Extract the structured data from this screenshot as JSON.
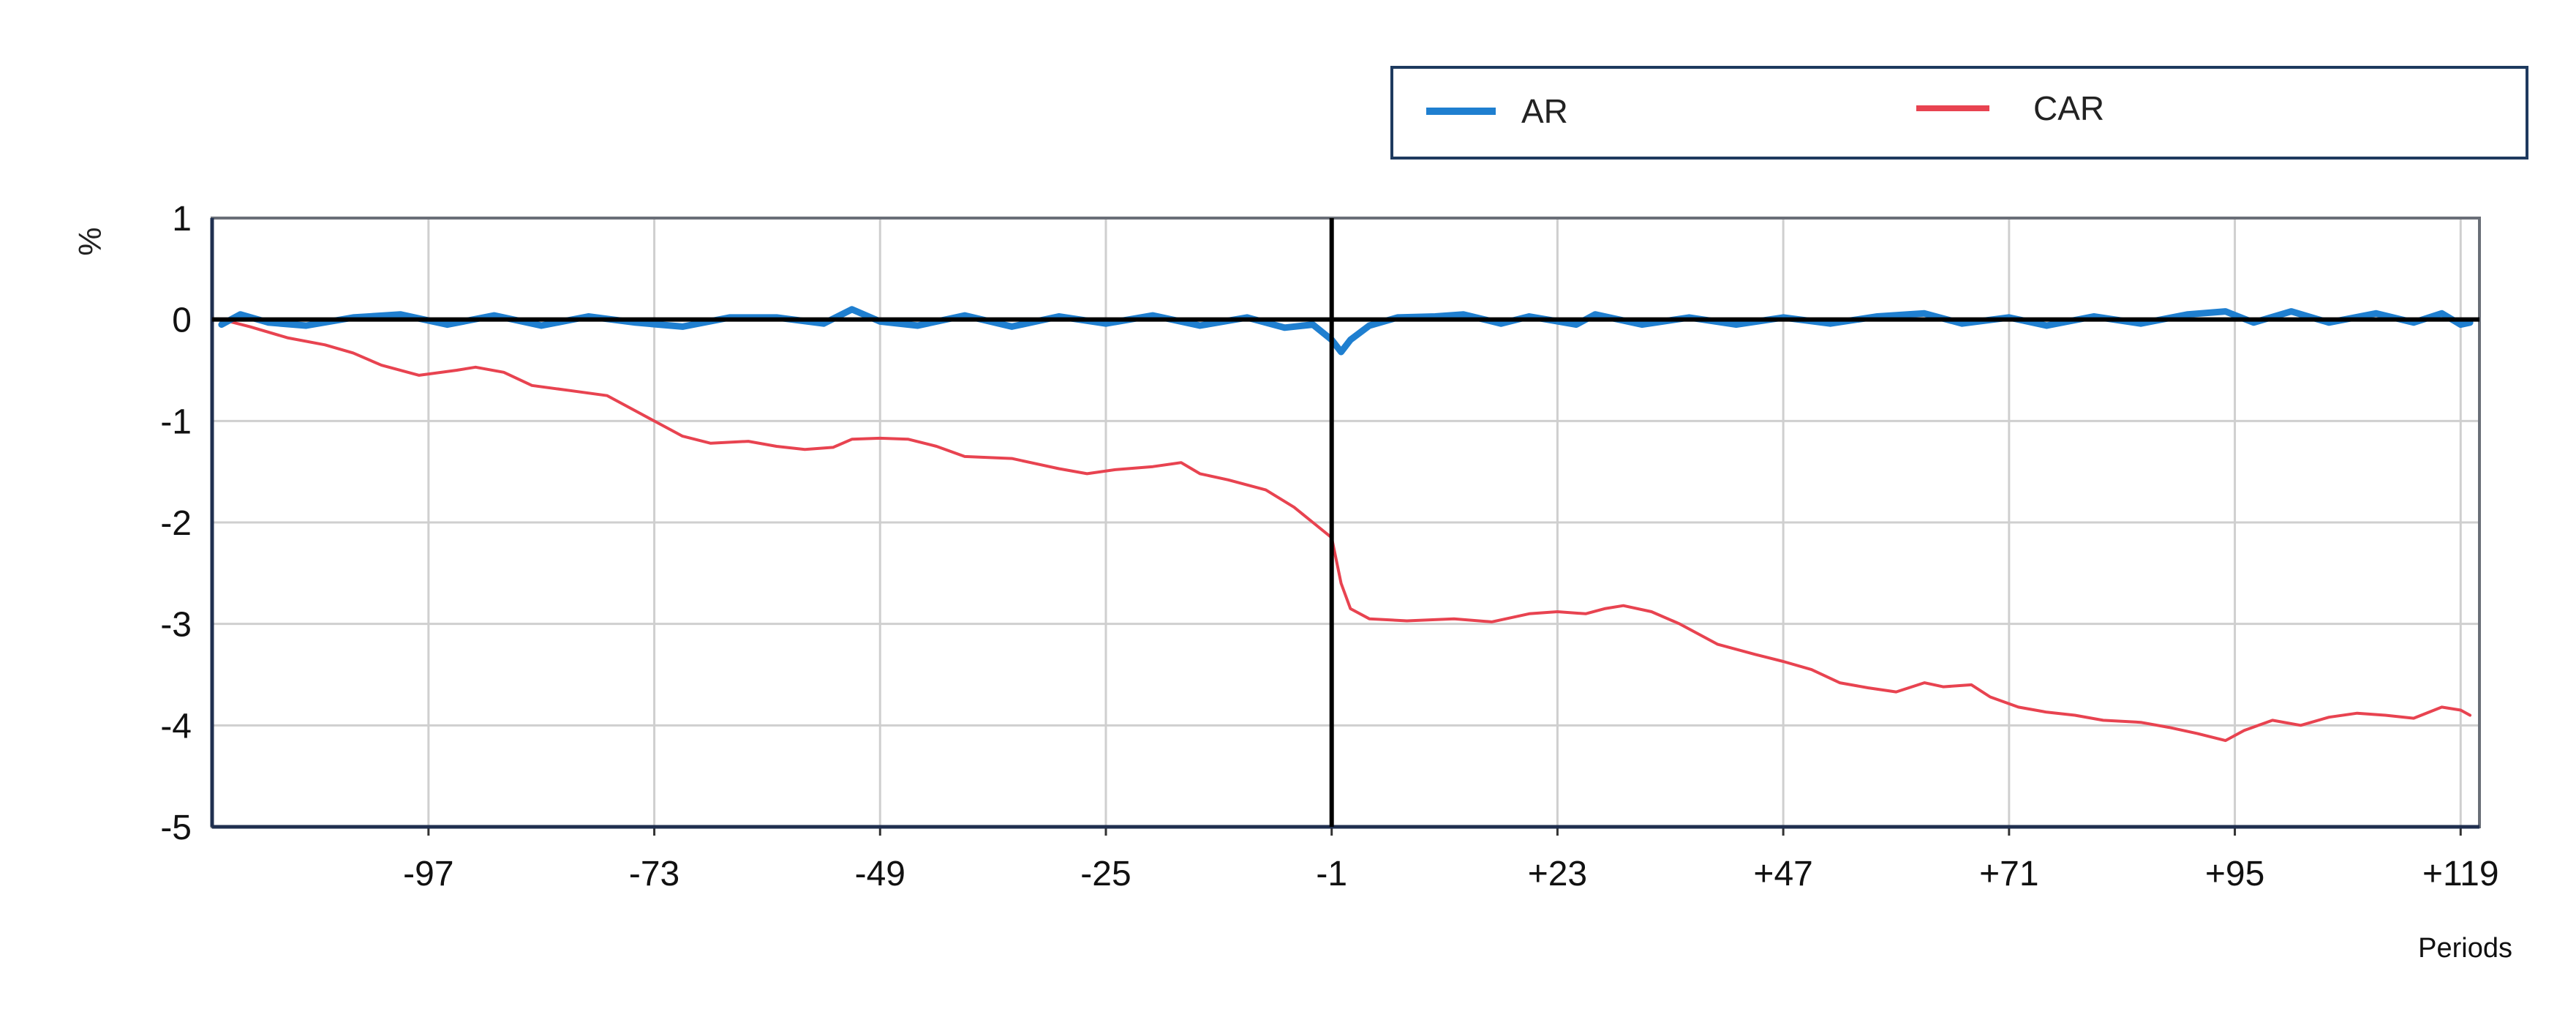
{
  "chart_data": {
    "type": "line",
    "ylabel": "%",
    "xlabel": "Periods",
    "xlim": [
      -120,
      121
    ],
    "ylim": [
      -5,
      1
    ],
    "y_ticks": [
      1,
      0,
      -1,
      -2,
      -3,
      -4,
      -5
    ],
    "y_tick_labels": [
      "1",
      "0",
      "-1",
      "-2",
      "-3",
      "-4",
      "-5"
    ],
    "x_ticks": [
      -97,
      -73,
      -49,
      -25,
      -1,
      23,
      47,
      71,
      95,
      119
    ],
    "x_tick_labels": [
      "-97",
      "-73",
      "-49",
      "-25",
      "-1",
      "+23",
      "+47",
      "+71",
      "+95",
      "+119"
    ],
    "event_line_x": -1,
    "zero_line_y": 0,
    "grid": true,
    "legend_position": "top-right",
    "series": [
      {
        "name": "AR",
        "color": "#1f7fd0",
        "points": [
          [
            -119,
            -0.05
          ],
          [
            -117,
            0.05
          ],
          [
            -114,
            -0.03
          ],
          [
            -110,
            -0.06
          ],
          [
            -105,
            0.02
          ],
          [
            -100,
            0.05
          ],
          [
            -95,
            -0.05
          ],
          [
            -90,
            0.04
          ],
          [
            -85,
            -0.06
          ],
          [
            -80,
            0.03
          ],
          [
            -75,
            -0.03
          ],
          [
            -70,
            -0.07
          ],
          [
            -65,
            0.02
          ],
          [
            -60,
            0.02
          ],
          [
            -55,
            -0.04
          ],
          [
            -52,
            0.1
          ],
          [
            -49,
            -0.02
          ],
          [
            -45,
            -0.06
          ],
          [
            -40,
            0.04
          ],
          [
            -35,
            -0.07
          ],
          [
            -30,
            0.03
          ],
          [
            -25,
            -0.04
          ],
          [
            -20,
            0.04
          ],
          [
            -15,
            -0.06
          ],
          [
            -10,
            0.02
          ],
          [
            -6,
            -0.08
          ],
          [
            -3,
            -0.05
          ],
          [
            -1,
            -0.2
          ],
          [
            0,
            -0.32
          ],
          [
            1,
            -0.2
          ],
          [
            3,
            -0.06
          ],
          [
            6,
            0.02
          ],
          [
            10,
            0.03
          ],
          [
            13,
            0.05
          ],
          [
            17,
            -0.04
          ],
          [
            20,
            0.03
          ],
          [
            25,
            -0.05
          ],
          [
            27,
            0.05
          ],
          [
            32,
            -0.05
          ],
          [
            37,
            0.02
          ],
          [
            42,
            -0.05
          ],
          [
            47,
            0.02
          ],
          [
            52,
            -0.04
          ],
          [
            57,
            0.03
          ],
          [
            62,
            0.06
          ],
          [
            66,
            -0.04
          ],
          [
            71,
            0.02
          ],
          [
            75,
            -0.06
          ],
          [
            80,
            0.03
          ],
          [
            85,
            -0.04
          ],
          [
            90,
            0.05
          ],
          [
            94,
            0.08
          ],
          [
            97,
            -0.03
          ],
          [
            101,
            0.08
          ],
          [
            105,
            -0.03
          ],
          [
            110,
            0.06
          ],
          [
            114,
            -0.03
          ],
          [
            117,
            0.06
          ],
          [
            119,
            -0.05
          ],
          [
            120,
            -0.03
          ]
        ]
      },
      {
        "name": "CAR",
        "color": "#e84350",
        "points": [
          [
            -119,
            0.0
          ],
          [
            -116,
            -0.07
          ],
          [
            -112,
            -0.18
          ],
          [
            -108,
            -0.25
          ],
          [
            -105,
            -0.33
          ],
          [
            -102,
            -0.45
          ],
          [
            -98,
            -0.55
          ],
          [
            -94,
            -0.5
          ],
          [
            -92,
            -0.47
          ],
          [
            -89,
            -0.52
          ],
          [
            -86,
            -0.65
          ],
          [
            -82,
            -0.7
          ],
          [
            -78,
            -0.75
          ],
          [
            -75,
            -0.9
          ],
          [
            -72,
            -1.05
          ],
          [
            -70,
            -1.15
          ],
          [
            -67,
            -1.22
          ],
          [
            -63,
            -1.2
          ],
          [
            -60,
            -1.25
          ],
          [
            -57,
            -1.28
          ],
          [
            -54,
            -1.26
          ],
          [
            -52,
            -1.18
          ],
          [
            -49,
            -1.17
          ],
          [
            -46,
            -1.18
          ],
          [
            -43,
            -1.25
          ],
          [
            -40,
            -1.35
          ],
          [
            -35,
            -1.37
          ],
          [
            -30,
            -1.47
          ],
          [
            -27,
            -1.52
          ],
          [
            -24,
            -1.48
          ],
          [
            -20,
            -1.45
          ],
          [
            -17,
            -1.41
          ],
          [
            -15,
            -1.52
          ],
          [
            -12,
            -1.58
          ],
          [
            -8,
            -1.68
          ],
          [
            -5,
            -1.85
          ],
          [
            -3,
            -2.0
          ],
          [
            -1,
            -2.15
          ],
          [
            0,
            -2.6
          ],
          [
            1,
            -2.85
          ],
          [
            3,
            -2.95
          ],
          [
            7,
            -2.97
          ],
          [
            12,
            -2.95
          ],
          [
            16,
            -2.98
          ],
          [
            20,
            -2.9
          ],
          [
            23,
            -2.88
          ],
          [
            26,
            -2.9
          ],
          [
            28,
            -2.85
          ],
          [
            30,
            -2.82
          ],
          [
            33,
            -2.88
          ],
          [
            36,
            -3.0
          ],
          [
            40,
            -3.2
          ],
          [
            44,
            -3.3
          ],
          [
            47,
            -3.37
          ],
          [
            50,
            -3.45
          ],
          [
            53,
            -3.58
          ],
          [
            56,
            -3.63
          ],
          [
            59,
            -3.67
          ],
          [
            62,
            -3.58
          ],
          [
            64,
            -3.62
          ],
          [
            67,
            -3.6
          ],
          [
            69,
            -3.72
          ],
          [
            72,
            -3.82
          ],
          [
            75,
            -3.87
          ],
          [
            78,
            -3.9
          ],
          [
            81,
            -3.95
          ],
          [
            85,
            -3.97
          ],
          [
            88,
            -4.02
          ],
          [
            91,
            -4.08
          ],
          [
            94,
            -4.15
          ],
          [
            96,
            -4.05
          ],
          [
            99,
            -3.95
          ],
          [
            102,
            -4.0
          ],
          [
            105,
            -3.92
          ],
          [
            108,
            -3.88
          ],
          [
            111,
            -3.9
          ],
          [
            114,
            -3.93
          ],
          [
            117,
            -3.82
          ],
          [
            119,
            -3.85
          ],
          [
            120,
            -3.9
          ]
        ]
      }
    ]
  }
}
